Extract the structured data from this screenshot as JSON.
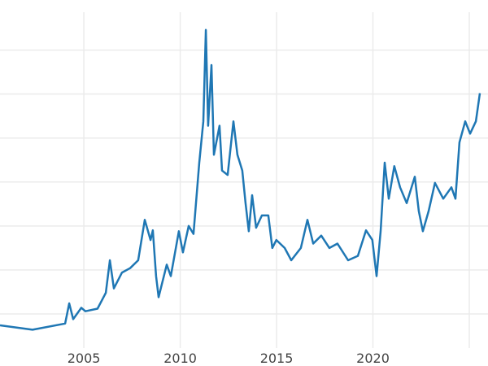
{
  "chart_data": {
    "type": "line",
    "title": "",
    "xlabel": "",
    "ylabel": "",
    "xlim": [
      2000.65,
      2025.97
    ],
    "ylim": [
      0,
      40.7
    ],
    "grid": true,
    "x_ticks": [
      2005,
      2010,
      2015,
      2020,
      2025
    ],
    "x_tick_labels": [
      "2005",
      "2010",
      "2015",
      "2020",
      ""
    ],
    "y_gridlines": [
      5,
      10,
      15,
      20,
      25,
      30,
      35
    ],
    "line_color": "#1f77b4",
    "grid_color": "#ebebeb",
    "series": [
      {
        "x": [
          2000.65,
          2002.34,
          2004.03,
          2004.24,
          2004.45,
          2004.87,
          2005.08,
          2005.71,
          2006.14,
          2006.35,
          2006.56,
          2006.98,
          2007.4,
          2007.82,
          2008.16,
          2008.46,
          2008.58,
          2008.75,
          2008.88,
          2009.3,
          2009.51,
          2009.93,
          2010.14,
          2010.44,
          2010.69,
          2010.99,
          2011.2,
          2011.33,
          2011.45,
          2011.62,
          2011.75,
          2012.04,
          2012.17,
          2012.46,
          2012.76,
          2012.97,
          2013.22,
          2013.39,
          2013.56,
          2013.73,
          2013.94,
          2014.24,
          2014.57,
          2014.78,
          2014.99,
          2015.42,
          2015.76,
          2016.26,
          2016.6,
          2016.9,
          2017.32,
          2017.74,
          2018.16,
          2018.71,
          2019.22,
          2019.64,
          2019.97,
          2020.19,
          2020.4,
          2020.61,
          2020.82,
          2021.11,
          2021.41,
          2021.75,
          2022.17,
          2022.38,
          2022.59,
          2022.89,
          2023.22,
          2023.65,
          2024.07,
          2024.28,
          2024.49,
          2024.79,
          2025.04,
          2025.34,
          2025.55
        ],
        "y": [
          3.7,
          3.2,
          3.9,
          6.2,
          4.4,
          5.7,
          5.3,
          5.6,
          7.4,
          11.1,
          7.9,
          9.7,
          10.2,
          11.1,
          15.7,
          13.4,
          14.5,
          9.3,
          6.9,
          10.6,
          9.3,
          14.4,
          12.0,
          15.0,
          14.1,
          22.2,
          26.9,
          37.3,
          26.4,
          33.3,
          23.1,
          26.4,
          21.3,
          20.8,
          26.9,
          23.1,
          21.3,
          17.6,
          14.4,
          18.5,
          14.8,
          16.2,
          16.2,
          12.5,
          13.4,
          12.5,
          11.1,
          12.5,
          15.7,
          13.0,
          13.9,
          12.5,
          13.0,
          11.1,
          11.6,
          14.5,
          13.4,
          9.3,
          14.4,
          22.2,
          18.1,
          21.8,
          19.4,
          17.6,
          20.6,
          16.7,
          14.4,
          16.7,
          19.9,
          18.1,
          19.4,
          18.1,
          24.5,
          26.9,
          25.5,
          26.9,
          30.1
        ]
      }
    ]
  }
}
